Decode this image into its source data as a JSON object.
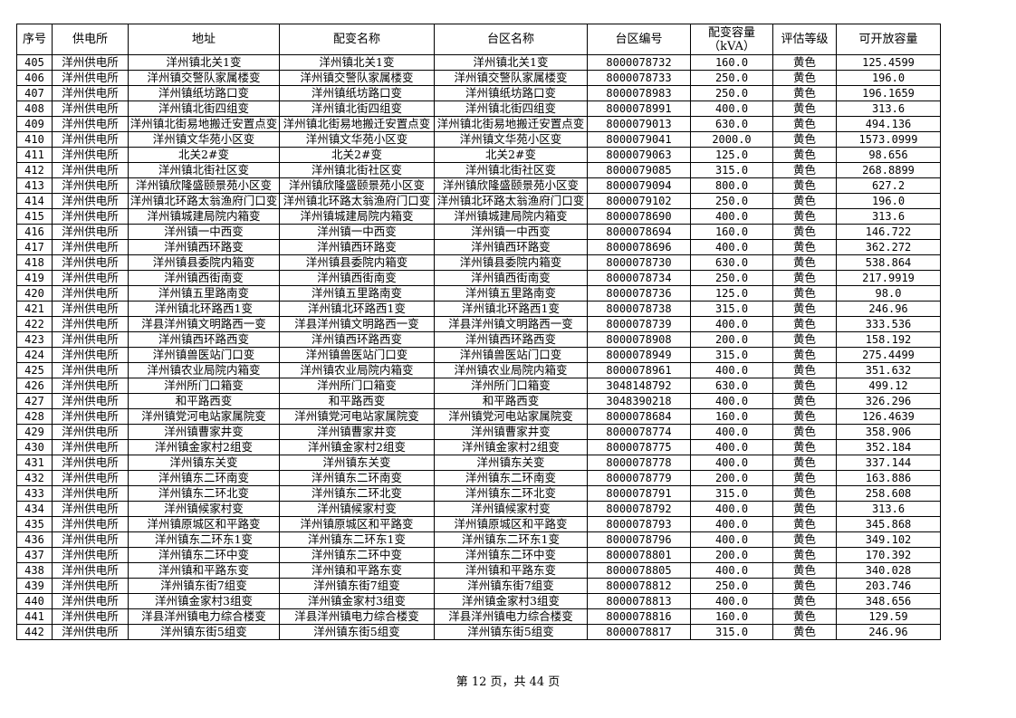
{
  "table": {
    "headers": [
      "序号",
      "供电所",
      "地址",
      "配变名称",
      "台区名称",
      "台区编号",
      "配变容量（kVA）",
      "评估等级",
      "可开放容量"
    ],
    "rows": [
      [
        "405",
        "洋州供电所",
        "洋州镇北关1变",
        "洋州镇北关1变",
        "洋州镇北关1变",
        "8000078732",
        "160.0",
        "黄色",
        "125.4599"
      ],
      [
        "406",
        "洋州供电所",
        "洋州镇交警队家属楼变",
        "洋州镇交警队家属楼变",
        "洋州镇交警队家属楼变",
        "8000078733",
        "250.0",
        "黄色",
        "196.0"
      ],
      [
        "407",
        "洋州供电所",
        "洋州镇纸坊路口变",
        "洋州镇纸坊路口变",
        "洋州镇纸坊路口变",
        "8000078983",
        "250.0",
        "黄色",
        "196.1659"
      ],
      [
        "408",
        "洋州供电所",
        "洋州镇北街四组变",
        "洋州镇北街四组变",
        "洋州镇北街四组变",
        "8000078991",
        "400.0",
        "黄色",
        "313.6"
      ],
      [
        "409",
        "洋州供电所",
        "洋州镇北街易地搬迁安置点变",
        "洋州镇北街易地搬迁安置点变",
        "洋州镇北街易地搬迁安置点变",
        "8000079013",
        "630.0",
        "黄色",
        "494.136"
      ],
      [
        "410",
        "洋州供电所",
        "洋州镇文华苑小区变",
        "洋州镇文华苑小区变",
        "洋州镇文华苑小区变",
        "8000079041",
        "2000.0",
        "黄色",
        "1573.0999"
      ],
      [
        "411",
        "洋州供电所",
        "北关2#变",
        "北关2#变",
        "北关2#变",
        "8000079063",
        "125.0",
        "黄色",
        "98.656"
      ],
      [
        "412",
        "洋州供电所",
        "洋州镇北街社区变",
        "洋州镇北街社区变",
        "洋州镇北街社区变",
        "8000079085",
        "315.0",
        "黄色",
        "268.8899"
      ],
      [
        "413",
        "洋州供电所",
        "洋州镇欣隆盛颐景苑小区变",
        "洋州镇欣隆盛颐景苑小区变",
        "洋州镇欣隆盛颐景苑小区变",
        "8000079094",
        "800.0",
        "黄色",
        "627.2"
      ],
      [
        "414",
        "洋州供电所",
        "洋州镇北环路太翁渔府门口变",
        "洋州镇北环路太翁渔府门口变",
        "洋州镇北环路太翁渔府门口变",
        "8000079102",
        "250.0",
        "黄色",
        "196.0"
      ],
      [
        "415",
        "洋州供电所",
        "洋州镇城建局院内箱变",
        "洋州镇城建局院内箱变",
        "洋州镇城建局院内箱变",
        "8000078690",
        "400.0",
        "黄色",
        "313.6"
      ],
      [
        "416",
        "洋州供电所",
        "洋州镇一中西变",
        "洋州镇一中西变",
        "洋州镇一中西变",
        "8000078694",
        "160.0",
        "黄色",
        "146.722"
      ],
      [
        "417",
        "洋州供电所",
        "洋州镇西环路变",
        "洋州镇西环路变",
        "洋州镇西环路变",
        "8000078696",
        "400.0",
        "黄色",
        "362.272"
      ],
      [
        "418",
        "洋州供电所",
        "洋州镇县委院内箱变",
        "洋州镇县委院内箱变",
        "洋州镇县委院内箱变",
        "8000078730",
        "630.0",
        "黄色",
        "538.864"
      ],
      [
        "419",
        "洋州供电所",
        "洋州镇西街南变",
        "洋州镇西街南变",
        "洋州镇西街南变",
        "8000078734",
        "250.0",
        "黄色",
        "217.9919"
      ],
      [
        "420",
        "洋州供电所",
        "洋州镇五里路南变",
        "洋州镇五里路南变",
        "洋州镇五里路南变",
        "8000078736",
        "125.0",
        "黄色",
        "98.0"
      ],
      [
        "421",
        "洋州供电所",
        "洋州镇北环路西1变",
        "洋州镇北环路西1变",
        "洋州镇北环路西1变",
        "8000078738",
        "315.0",
        "黄色",
        "246.96"
      ],
      [
        "422",
        "洋州供电所",
        "洋县洋州镇文明路西一变",
        "洋县洋州镇文明路西一变",
        "洋县洋州镇文明路西一变",
        "8000078739",
        "400.0",
        "黄色",
        "333.536"
      ],
      [
        "423",
        "洋州供电所",
        "洋州镇西环路西变",
        "洋州镇西环路西变",
        "洋州镇西环路西变",
        "8000078908",
        "200.0",
        "黄色",
        "158.192"
      ],
      [
        "424",
        "洋州供电所",
        "洋州镇兽医站门口变",
        "洋州镇兽医站门口变",
        "洋州镇兽医站门口变",
        "8000078949",
        "315.0",
        "黄色",
        "275.4499"
      ],
      [
        "425",
        "洋州供电所",
        "洋州镇农业局院内箱变",
        "洋州镇农业局院内箱变",
        "洋州镇农业局院内箱变",
        "8000078961",
        "400.0",
        "黄色",
        "351.632"
      ],
      [
        "426",
        "洋州供电所",
        "洋州所门口箱变",
        "洋州所门口箱变",
        "洋州所门口箱变",
        "3048148792",
        "630.0",
        "黄色",
        "499.12"
      ],
      [
        "427",
        "洋州供电所",
        "和平路西变",
        "和平路西变",
        "和平路西变",
        "3048390218",
        "400.0",
        "黄色",
        "326.296"
      ],
      [
        "428",
        "洋州供电所",
        "洋州镇党河电站家属院变",
        "洋州镇党河电站家属院变",
        "洋州镇党河电站家属院变",
        "8000078684",
        "160.0",
        "黄色",
        "126.4639"
      ],
      [
        "429",
        "洋州供电所",
        "洋州镇曹家井变",
        "洋州镇曹家井变",
        "洋州镇曹家井变",
        "8000078774",
        "400.0",
        "黄色",
        "358.906"
      ],
      [
        "430",
        "洋州供电所",
        "洋州镇金家村2组变",
        "洋州镇金家村2组变",
        "洋州镇金家村2组变",
        "8000078775",
        "400.0",
        "黄色",
        "352.184"
      ],
      [
        "431",
        "洋州供电所",
        "洋州镇东关变",
        "洋州镇东关变",
        "洋州镇东关变",
        "8000078778",
        "400.0",
        "黄色",
        "337.144"
      ],
      [
        "432",
        "洋州供电所",
        "洋州镇东二环南变",
        "洋州镇东二环南变",
        "洋州镇东二环南变",
        "8000078779",
        "200.0",
        "黄色",
        "163.886"
      ],
      [
        "433",
        "洋州供电所",
        "洋州镇东二环北变",
        "洋州镇东二环北变",
        "洋州镇东二环北变",
        "8000078791",
        "315.0",
        "黄色",
        "258.608"
      ],
      [
        "434",
        "洋州供电所",
        "洋州镇候家村变",
        "洋州镇候家村变",
        "洋州镇候家村变",
        "8000078792",
        "400.0",
        "黄色",
        "313.6"
      ],
      [
        "435",
        "洋州供电所",
        "洋州镇原城区和平路变",
        "洋州镇原城区和平路变",
        "洋州镇原城区和平路变",
        "8000078793",
        "400.0",
        "黄色",
        "345.868"
      ],
      [
        "436",
        "洋州供电所",
        "洋州镇东二环东1变",
        "洋州镇东二环东1变",
        "洋州镇东二环东1变",
        "8000078796",
        "400.0",
        "黄色",
        "349.102"
      ],
      [
        "437",
        "洋州供电所",
        "洋州镇东二环中变",
        "洋州镇东二环中变",
        "洋州镇东二环中变",
        "8000078801",
        "200.0",
        "黄色",
        "170.392"
      ],
      [
        "438",
        "洋州供电所",
        "洋州镇和平路东变",
        "洋州镇和平路东变",
        "洋州镇和平路东变",
        "8000078805",
        "400.0",
        "黄色",
        "340.028"
      ],
      [
        "439",
        "洋州供电所",
        "洋州镇东街7组变",
        "洋州镇东街7组变",
        "洋州镇东街7组变",
        "8000078812",
        "250.0",
        "黄色",
        "203.746"
      ],
      [
        "440",
        "洋州供电所",
        "洋州镇金家村3组变",
        "洋州镇金家村3组变",
        "洋州镇金家村3组变",
        "8000078813",
        "400.0",
        "黄色",
        "348.656"
      ],
      [
        "441",
        "洋州供电所",
        "洋县洋州镇电力综合楼变",
        "洋县洋州镇电力综合楼变",
        "洋县洋州镇电力综合楼变",
        "8000078816",
        "160.0",
        "黄色",
        "129.59"
      ],
      [
        "442",
        "洋州供电所",
        "洋州镇东街5组变",
        "洋州镇东街5组变",
        "洋州镇东街5组变",
        "8000078817",
        "315.0",
        "黄色",
        "246.96"
      ]
    ]
  },
  "footer": {
    "page_label": "第 12 页，共 44 页"
  }
}
